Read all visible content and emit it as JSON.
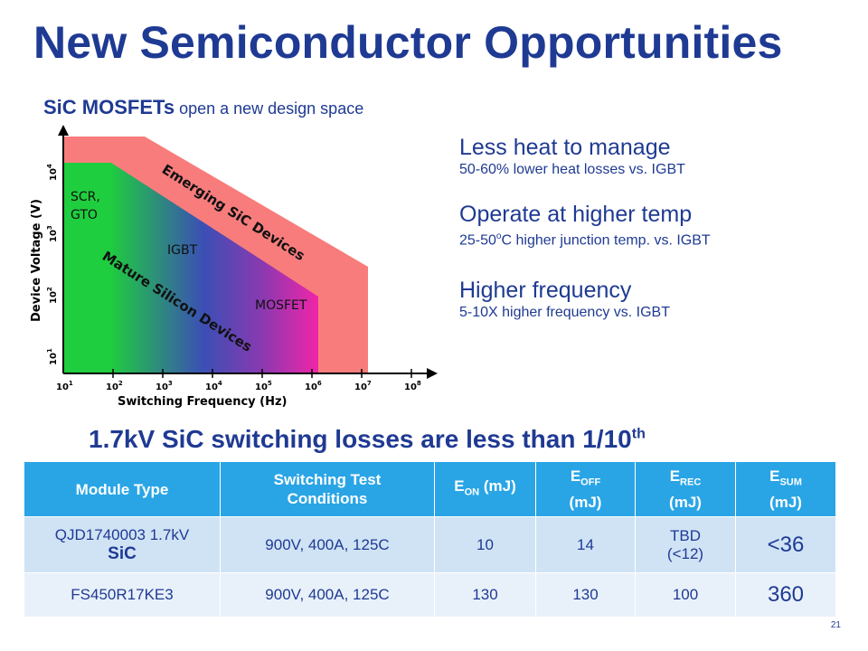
{
  "title": "New Semiconductor Opportunities",
  "subtitle": {
    "bold": "SiC MOSFETs",
    "rest": " open a new design space"
  },
  "diagram": {
    "xlabel": "Switching Frequency (Hz)",
    "ylabel": "Device Voltage (V)",
    "x_ticks": [
      "10",
      "10",
      "10",
      "10",
      "10",
      "10",
      "10",
      "10"
    ],
    "x_tick_exps": [
      "1",
      "2",
      "3",
      "4",
      "5",
      "6",
      "7",
      "8"
    ],
    "y_ticks": [
      "10",
      "10",
      "10",
      "10"
    ],
    "y_tick_exps": [
      "1",
      "2",
      "3",
      "4"
    ],
    "region_labels": {
      "scr": "SCR,",
      "gto": "GTO",
      "igbt": "IGBT",
      "mosfet": "MOSFET"
    },
    "band_labels": {
      "emerging": "Emerging SiC Devices",
      "mature": "Mature Silicon Devices"
    },
    "colors": {
      "emerging": "#f87c7c",
      "green": "#1fce3e",
      "blue": "#3b4fb5",
      "magenta": "#f025a8"
    }
  },
  "benefits": [
    {
      "head": "Less heat to manage",
      "sub": "50-60% lower heat losses vs. IGBT"
    },
    {
      "head": "Operate at higher temp",
      "sub_pre": "25-50",
      "sub_sup": "o",
      "sub_post": "C higher junction temp. vs. IGBT"
    },
    {
      "head": "Higher frequency",
      "sub": "5-10X higher frequency vs. IGBT"
    }
  ],
  "headline": {
    "text": "1.7kV SiC switching losses are less than 1/10",
    "sup": "th"
  },
  "table": {
    "headers": {
      "module": "Module  Type",
      "cond_1": "Switching  Test",
      "cond_2": "Conditions",
      "eon": "E",
      "eon_sub": "ON",
      "eon_post": " (mJ)",
      "eoff": "E",
      "eoff_sub": "OFF",
      "eoff_post": "(mJ)",
      "erec": "E",
      "erec_sub": "REC",
      "erec_post": "(mJ)",
      "esum": "E",
      "esum_sub": "SUM",
      "esum_post": "(mJ)"
    },
    "rows": [
      {
        "module_1": "QJD1740003 1.7kV",
        "module_2": "SiC",
        "cond": "900V, 400A, 125C",
        "eon": "10",
        "eoff": "14",
        "erec_1": "TBD",
        "erec_2": "(<12)",
        "esum": "<36"
      },
      {
        "module": "FS450R17KE3",
        "cond": "900V, 400A, 125C",
        "eon": "130",
        "eoff": "130",
        "erec": "100",
        "esum": "360"
      }
    ]
  },
  "slide_number": "21"
}
